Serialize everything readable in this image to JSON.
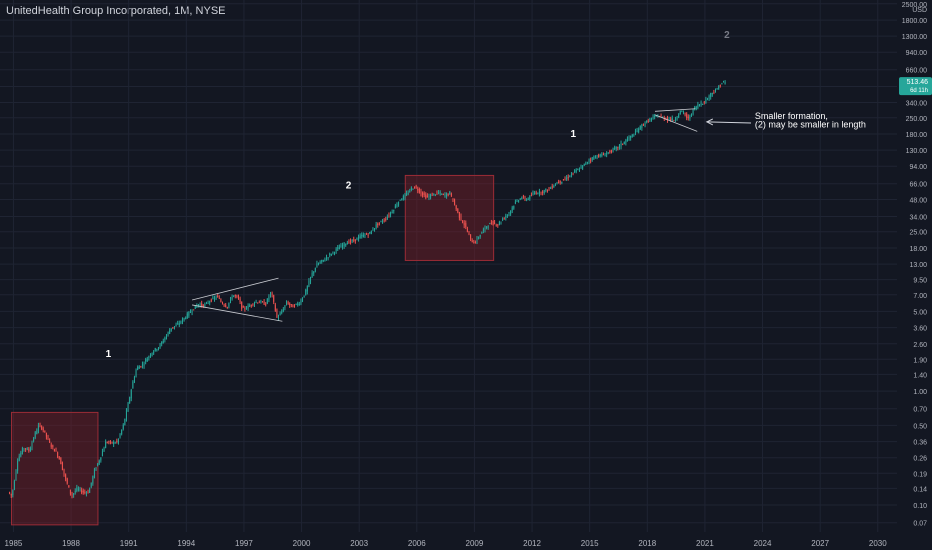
{
  "header": {
    "title": "UnitedHealth Group Incorporated, 1M, NYSE"
  },
  "chart_data": {
    "type": "candlestick",
    "scale": "log",
    "currency_label": "USD",
    "y_ticks": [
      "2500.00",
      "1800.00",
      "1300.00",
      "940.00",
      "660.00",
      "470.00",
      "340.00",
      "250.00",
      "180.00",
      "130.00",
      "94.00",
      "66.00",
      "48.00",
      "34.00",
      "25.00",
      "18.00",
      "13.00",
      "9.50",
      "7.00",
      "5.00",
      "3.60",
      "2.60",
      "1.90",
      "1.40",
      "1.00",
      "0.70",
      "0.50",
      "0.36",
      "0.26",
      "0.19",
      "0.14",
      "0.10",
      "0.07"
    ],
    "x_ticks": [
      "1985",
      "1988",
      "1991",
      "1994",
      "1997",
      "2000",
      "2003",
      "2006",
      "2009",
      "2012",
      "2015",
      "2018",
      "2021",
      "2024",
      "2027",
      "2030"
    ],
    "x_range": [
      1984.3,
      2031.0
    ],
    "y_range": [
      0.058,
      2700
    ],
    "price_badge": {
      "price": "513.46",
      "countdown": "6d 11h",
      "color": "#26a69a"
    },
    "colors": {
      "up": "#26a69a",
      "down": "#ef5350",
      "background": "#131722",
      "grid": "#1f2433",
      "box": "#7a1f28"
    },
    "price_path": [
      [
        1984.8,
        0.13
      ],
      [
        1985.0,
        0.12
      ],
      [
        1985.3,
        0.25
      ],
      [
        1985.6,
        0.32
      ],
      [
        1985.9,
        0.3
      ],
      [
        1986.2,
        0.42
      ],
      [
        1986.4,
        0.5
      ],
      [
        1986.6,
        0.47
      ],
      [
        1986.8,
        0.4
      ],
      [
        1987.0,
        0.34
      ],
      [
        1987.3,
        0.29
      ],
      [
        1987.5,
        0.25
      ],
      [
        1987.7,
        0.19
      ],
      [
        1987.9,
        0.15
      ],
      [
        1988.1,
        0.12
      ],
      [
        1988.4,
        0.14
      ],
      [
        1988.7,
        0.13
      ],
      [
        1989.0,
        0.13
      ],
      [
        1989.3,
        0.2
      ],
      [
        1989.6,
        0.26
      ],
      [
        1989.9,
        0.36
      ],
      [
        1990.2,
        0.35
      ],
      [
        1990.5,
        0.36
      ],
      [
        1990.8,
        0.5
      ],
      [
        1991.0,
        0.7
      ],
      [
        1991.3,
        1.2
      ],
      [
        1991.5,
        1.6
      ],
      [
        1991.8,
        1.7
      ],
      [
        1992.0,
        1.9
      ],
      [
        1992.3,
        2.2
      ],
      [
        1992.7,
        2.5
      ],
      [
        1993.0,
        3.0
      ],
      [
        1993.3,
        3.6
      ],
      [
        1993.6,
        3.8
      ],
      [
        1994.0,
        4.4
      ],
      [
        1994.3,
        5.0
      ],
      [
        1994.7,
        5.8
      ],
      [
        1995.0,
        5.6
      ],
      [
        1995.3,
        6.2
      ],
      [
        1995.7,
        6.8
      ],
      [
        1995.9,
        6.0
      ],
      [
        1996.2,
        5.5
      ],
      [
        1996.5,
        7.0
      ],
      [
        1996.8,
        6.5
      ],
      [
        1997.0,
        5.2
      ],
      [
        1997.3,
        5.5
      ],
      [
        1997.6,
        6.0
      ],
      [
        1997.9,
        6.1
      ],
      [
        1998.2,
        5.8
      ],
      [
        1998.5,
        7.5
      ],
      [
        1998.8,
        4.4
      ],
      [
        1999.0,
        4.8
      ],
      [
        1999.3,
        6.0
      ],
      [
        1999.6,
        5.5
      ],
      [
        2000.0,
        6.0
      ],
      [
        2000.3,
        7.5
      ],
      [
        2000.6,
        10.5
      ],
      [
        2000.9,
        13.0
      ],
      [
        2001.2,
        14.0
      ],
      [
        2001.6,
        16.0
      ],
      [
        2002.0,
        18.0
      ],
      [
        2002.4,
        20.0
      ],
      [
        2002.8,
        21.0
      ],
      [
        2003.2,
        23.0
      ],
      [
        2003.6,
        24.0
      ],
      [
        2004.0,
        29.0
      ],
      [
        2004.4,
        32.0
      ],
      [
        2004.8,
        38.0
      ],
      [
        2005.2,
        48.0
      ],
      [
        2005.5,
        52.0
      ],
      [
        2005.8,
        60.0
      ],
      [
        2006.0,
        62.0
      ],
      [
        2006.3,
        55.0
      ],
      [
        2006.6,
        50.0
      ],
      [
        2006.9,
        53.0
      ],
      [
        2007.2,
        55.0
      ],
      [
        2007.5,
        52.0
      ],
      [
        2007.8,
        55.0
      ],
      [
        2008.0,
        45.0
      ],
      [
        2008.3,
        34.0
      ],
      [
        2008.6,
        28.0
      ],
      [
        2008.9,
        21.0
      ],
      [
        2009.1,
        20.0
      ],
      [
        2009.4,
        24.0
      ],
      [
        2009.7,
        28.0
      ],
      [
        2010.0,
        30.0
      ],
      [
        2010.3,
        29.0
      ],
      [
        2010.6,
        33.0
      ],
      [
        2010.9,
        37.0
      ],
      [
        2011.2,
        45.0
      ],
      [
        2011.5,
        50.0
      ],
      [
        2011.8,
        48.0
      ],
      [
        2012.2,
        55.0
      ],
      [
        2012.6,
        56.0
      ],
      [
        2013.0,
        60.0
      ],
      [
        2013.4,
        68.0
      ],
      [
        2013.8,
        72.0
      ],
      [
        2014.2,
        82.0
      ],
      [
        2014.6,
        90.0
      ],
      [
        2015.0,
        105.0
      ],
      [
        2015.4,
        115.0
      ],
      [
        2015.8,
        118.0
      ],
      [
        2016.2,
        128.0
      ],
      [
        2016.6,
        140.0
      ],
      [
        2017.0,
        160.0
      ],
      [
        2017.4,
        180.0
      ],
      [
        2017.8,
        215.0
      ],
      [
        2018.2,
        240.0
      ],
      [
        2018.6,
        262.0
      ],
      [
        2018.9,
        250.0
      ],
      [
        2019.2,
        245.0
      ],
      [
        2019.5,
        240.0
      ],
      [
        2019.8,
        285.0
      ],
      [
        2020.0,
        275.0
      ],
      [
        2020.2,
        240.0
      ],
      [
        2020.5,
        300.0
      ],
      [
        2020.8,
        330.0
      ],
      [
        2021.1,
        350.0
      ],
      [
        2021.4,
        410.0
      ],
      [
        2021.7,
        440.0
      ],
      [
        2021.9,
        500.0
      ],
      [
        2022.1,
        513.46
      ]
    ],
    "annotations": [
      {
        "text": "1",
        "x": 1989.8,
        "y": 2.0,
        "color": "#ffffff"
      },
      {
        "text": "2",
        "x": 2002.3,
        "y": 60,
        "color": "#ffffff"
      },
      {
        "text": "1",
        "x": 2014.0,
        "y": 170,
        "color": "#ffffff"
      },
      {
        "text": "2",
        "x": 2022.0,
        "y": 1250,
        "color": "#787b86"
      },
      {
        "text": "Smaller formation,",
        "x": 2023.6,
        "y": 245,
        "color": "#ffffff"
      },
      {
        "text": "(2) may be smaller in length",
        "x": 2023.6,
        "y": 205,
        "color": "#ffffff"
      }
    ],
    "arrow": {
      "from": [
        2023.4,
        225
      ],
      "to": [
        2021.1,
        230
      ]
    },
    "shaded_boxes": [
      {
        "x": [
          1984.9,
          1989.4
        ],
        "y": [
          0.067,
          0.65
        ]
      },
      {
        "x": [
          2005.4,
          2010.0
        ],
        "y": [
          14.0,
          78.0
        ]
      }
    ],
    "trendlines": [
      {
        "from": [
          1994.3,
          6.3
        ],
        "to": [
          1998.8,
          9.8
        ]
      },
      {
        "from": [
          1994.3,
          5.7
        ],
        "to": [
          1999.0,
          4.1
        ]
      },
      {
        "from": [
          2018.4,
          285
        ],
        "to": [
          2020.5,
          300
        ]
      },
      {
        "from": [
          2018.4,
          265
        ],
        "to": [
          2020.6,
          190
        ]
      }
    ]
  }
}
